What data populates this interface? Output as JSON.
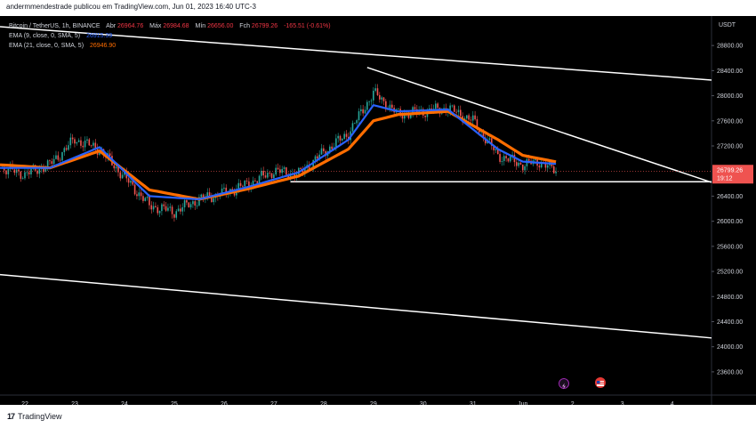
{
  "header": {
    "publisher": "andermmendestrade publicou em TradingView.com, Jun 01, 2023 16:40 UTC-3"
  },
  "legend": {
    "symbol": "Bitcoin / TetherUS, 1h, BINANCE",
    "open_label": "Abr",
    "open": "26964.76",
    "high_label": "Máx",
    "high": "26984.68",
    "low_label": "Mín",
    "low": "26656.00",
    "close_label": "Fch",
    "close": "26799.26",
    "change": "-165.51 (-0.61%)",
    "ema9_label": "EMA (9, close, 0, SMA, 5)",
    "ema9_value": "26915.39",
    "ema21_label": "EMA (21, close, 0, SMA, 5)",
    "ema21_value": "26946.90"
  },
  "price_axis": {
    "currency": "USDT",
    "ticks": [
      "28800.00",
      "28400.00",
      "28000.00",
      "27600.00",
      "27200.00",
      "26400.00",
      "26000.00",
      "25600.00",
      "25200.00",
      "24800.00",
      "24400.00",
      "24000.00",
      "23600.00"
    ],
    "last_price": "26799.26",
    "countdown": "19:12"
  },
  "time_axis": {
    "ticks": [
      "22",
      "23",
      "24",
      "25",
      "26",
      "27",
      "28",
      "29",
      "30",
      "31",
      "Jun",
      "2",
      "3",
      "4"
    ]
  },
  "footer": {
    "brand": "TradingView"
  },
  "colors": {
    "up": "#26a69a",
    "down": "#ef5350",
    "ema9": "#2962ff",
    "ema21": "#ff6d00",
    "trendline": "#ffffff"
  },
  "chart_data": {
    "type": "candlestick",
    "title": "Bitcoin / TetherUS, 1h, BINANCE",
    "ylim": [
      23400,
      29100
    ],
    "x_range": [
      "2023-05-21T12:00",
      "2023-06-04T19:00"
    ],
    "last_price": 26799.26,
    "series": [
      {
        "name": "Bitcoin / TetherUS, 1h, BINANCE",
        "type": "price",
        "x": [
          "2023-05-21T12:00",
          "2023-05-22T00:00",
          "2023-05-22T12:00",
          "2023-05-23T00:00",
          "2023-05-23T12:00",
          "2023-05-24T00:00",
          "2023-05-24T12:00",
          "2023-05-25T00:00",
          "2023-05-25T12:00",
          "2023-05-26T00:00",
          "2023-05-26T12:00",
          "2023-05-27T00:00",
          "2023-05-27T12:00",
          "2023-05-28T00:00",
          "2023-05-28T12:00",
          "2023-05-29T00:00",
          "2023-05-29T12:00",
          "2023-05-30T00:00",
          "2023-05-30T12:00",
          "2023-05-31T00:00",
          "2023-05-31T12:00",
          "2023-06-01T00:00",
          "2023-06-01T08:00",
          "2023-06-01T16:00"
        ],
        "y": [
          26850,
          26750,
          26900,
          27300,
          27150,
          26700,
          26250,
          26150,
          26350,
          26450,
          26600,
          26800,
          26750,
          27100,
          27400,
          28050,
          27700,
          27750,
          27800,
          27600,
          27050,
          26900,
          26950,
          26800
        ]
      },
      {
        "name": "EMA (9, close, 0, SMA, 5)",
        "type": "ema",
        "x": [
          "2023-05-21T12:00",
          "2023-05-22T12:00",
          "2023-05-23T12:00",
          "2023-05-24T12:00",
          "2023-05-25T12:00",
          "2023-05-26T12:00",
          "2023-05-27T12:00",
          "2023-05-28T12:00",
          "2023-05-29T00:00",
          "2023-05-29T12:00",
          "2023-05-30T12:00",
          "2023-05-31T12:00",
          "2023-06-01T00:00",
          "2023-06-01T16:00"
        ],
        "y": [
          26850,
          26850,
          27180,
          26400,
          26350,
          26550,
          26780,
          27300,
          27850,
          27750,
          27780,
          27150,
          26950,
          26915
        ]
      },
      {
        "name": "EMA (21, close, 0, SMA, 5)",
        "type": "ema",
        "x": [
          "2023-05-21T12:00",
          "2023-05-22T12:00",
          "2023-05-23T12:00",
          "2023-05-24T12:00",
          "2023-05-25T12:00",
          "2023-05-26T12:00",
          "2023-05-27T12:00",
          "2023-05-28T12:00",
          "2023-05-29T00:00",
          "2023-05-29T12:00",
          "2023-05-30T12:00",
          "2023-05-31T12:00",
          "2023-06-01T00:00",
          "2023-06-01T16:00"
        ],
        "y": [
          26900,
          26850,
          27120,
          26500,
          26350,
          26520,
          26720,
          27150,
          27600,
          27700,
          27750,
          27300,
          27050,
          26947
        ]
      }
    ],
    "trendlines": [
      {
        "from": {
          "x": "2023-05-21T12:00",
          "y": 29100
        },
        "to": {
          "x": "2023-06-04T19:00",
          "y": 28250
        }
      },
      {
        "from": {
          "x": "2023-05-21T12:00",
          "y": 25150
        },
        "to": {
          "x": "2023-06-04T19:00",
          "y": 24140
        }
      },
      {
        "from": {
          "x": "2023-05-28T21:00",
          "y": 28450
        },
        "to": {
          "x": "2023-06-04T19:00",
          "y": 26620
        }
      },
      {
        "from": {
          "x": "2023-05-27T08:00",
          "y": 26630
        },
        "to": {
          "x": "2023-06-04T19:00",
          "y": 26630
        }
      }
    ]
  }
}
